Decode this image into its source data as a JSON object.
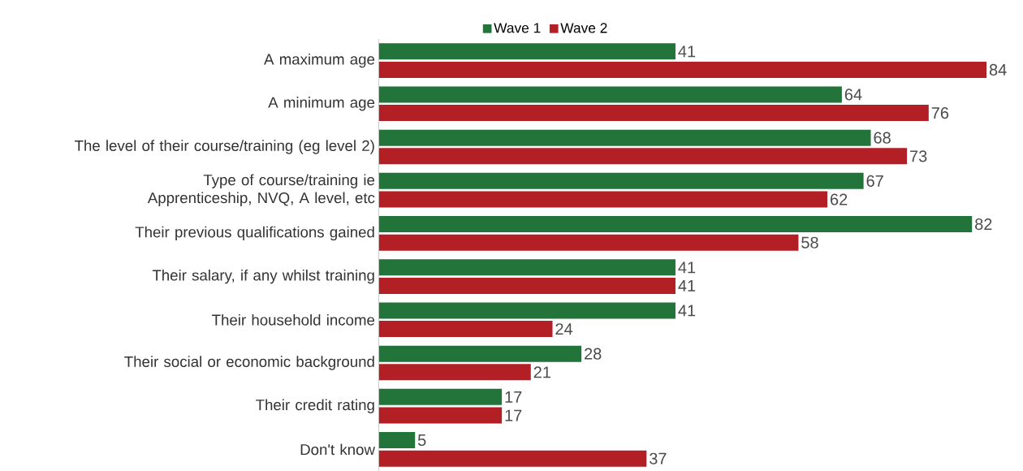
{
  "chart_data": {
    "type": "bar",
    "orientation": "horizontal",
    "data_labels": true,
    "legend": "top",
    "categories": [
      "A maximum age",
      "A minimum age",
      "The level of their course/training (eg level 2)",
      "Type of course/training ie Apprenticeship, NVQ, A level, etc",
      "Their previous qualifications gained",
      "Their salary, if any whilst training",
      "Their household income",
      "Their social or economic background",
      "Their credit rating",
      "Don't know"
    ],
    "series": [
      {
        "name": "Wave 1",
        "color": "#22743a",
        "values": [
          41,
          64,
          68,
          67,
          82,
          41,
          41,
          28,
          17,
          5
        ]
      },
      {
        "name": "Wave 2",
        "color": "#b21f24",
        "values": [
          84,
          76,
          73,
          62,
          58,
          41,
          24,
          21,
          17,
          37
        ]
      }
    ]
  }
}
